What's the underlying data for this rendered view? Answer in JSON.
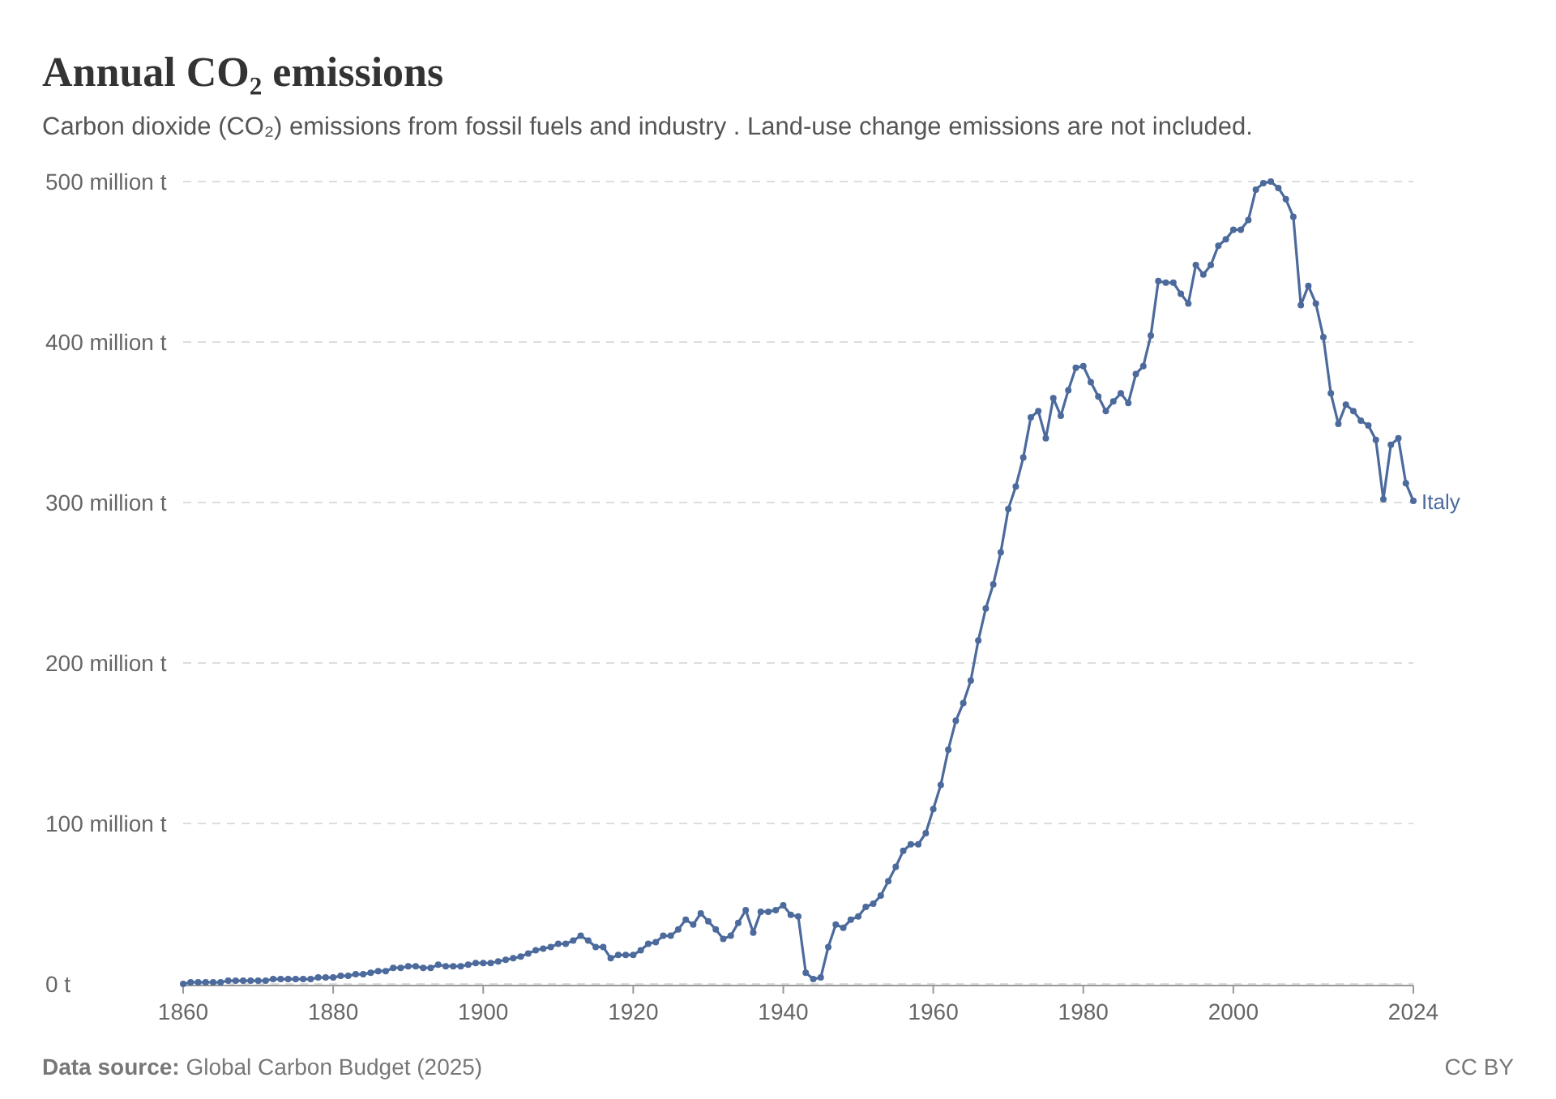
{
  "chart_data": {
    "type": "line",
    "title": "Annual CO₂ emissions",
    "subtitle": "Carbon dioxide (CO₂) emissions from fossil fuels and industry . Land-use change emissions are not included.",
    "annotations": [
      "Data source: Global Carbon Budget (2025)",
      "CC BY"
    ],
    "x": [
      1860,
      1861,
      1862,
      1863,
      1864,
      1865,
      1866,
      1867,
      1868,
      1869,
      1870,
      1871,
      1872,
      1873,
      1874,
      1875,
      1876,
      1877,
      1878,
      1879,
      1880,
      1881,
      1882,
      1883,
      1884,
      1885,
      1886,
      1887,
      1888,
      1889,
      1890,
      1891,
      1892,
      1893,
      1894,
      1895,
      1896,
      1897,
      1898,
      1899,
      1900,
      1901,
      1902,
      1903,
      1904,
      1905,
      1906,
      1907,
      1908,
      1909,
      1910,
      1911,
      1912,
      1913,
      1914,
      1915,
      1916,
      1917,
      1918,
      1919,
      1920,
      1921,
      1922,
      1923,
      1924,
      1925,
      1926,
      1927,
      1928,
      1929,
      1930,
      1931,
      1932,
      1933,
      1934,
      1935,
      1936,
      1937,
      1938,
      1939,
      1940,
      1941,
      1942,
      1943,
      1944,
      1945,
      1946,
      1947,
      1948,
      1949,
      1950,
      1951,
      1952,
      1953,
      1954,
      1955,
      1956,
      1957,
      1958,
      1959,
      1960,
      1961,
      1962,
      1963,
      1964,
      1965,
      1966,
      1967,
      1968,
      1969,
      1970,
      1971,
      1972,
      1973,
      1974,
      1975,
      1976,
      1977,
      1978,
      1979,
      1980,
      1981,
      1982,
      1983,
      1984,
      1985,
      1986,
      1987,
      1988,
      1989,
      1990,
      1991,
      1992,
      1993,
      1994,
      1995,
      1996,
      1997,
      1998,
      1999,
      2000,
      2001,
      2002,
      2003,
      2004,
      2005,
      2006,
      2007,
      2008,
      2009,
      2010,
      2011,
      2012,
      2013,
      2014,
      2015,
      2016,
      2017,
      2018,
      2019,
      2020,
      2021,
      2022,
      2023,
      2024
    ],
    "series": [
      {
        "name": "Italy",
        "color": "#4c6a9c",
        "values": [
          0,
          1,
          1,
          1,
          1,
          1,
          2,
          2,
          2,
          2,
          2,
          2,
          3,
          3,
          3,
          3,
          3,
          3,
          4,
          4,
          4,
          5,
          5,
          6,
          6,
          7,
          8,
          8,
          10,
          10,
          11,
          11,
          10,
          10,
          12,
          11,
          11,
          11,
          12,
          13,
          13,
          13,
          14,
          15,
          16,
          17,
          19,
          21,
          22,
          23,
          25,
          25,
          27,
          30,
          27,
          23,
          23,
          16,
          18,
          18,
          18,
          21,
          25,
          26,
          30,
          30,
          34,
          40,
          37,
          44,
          39,
          34,
          28,
          30,
          38,
          46,
          32,
          45,
          45,
          46,
          49,
          43,
          42,
          7,
          3,
          4,
          23,
          37,
          35,
          40,
          42,
          48,
          50,
          55,
          64,
          73,
          83,
          87,
          87,
          94,
          109,
          124,
          146,
          164,
          175,
          189,
          214,
          234,
          249,
          269,
          296,
          310,
          328,
          353,
          357,
          340,
          365,
          354,
          370,
          384,
          385,
          375,
          366,
          357,
          363,
          368,
          362,
          380,
          385,
          404,
          438,
          437,
          437,
          430,
          424,
          448,
          442,
          448,
          460,
          464,
          470,
          470,
          476,
          495,
          499,
          500,
          496,
          489,
          478,
          423,
          435,
          424,
          403,
          368,
          349,
          361,
          357,
          351,
          348,
          339,
          302,
          336,
          340,
          312,
          301
        ]
      }
    ],
    "xlim": [
      1860,
      2024
    ],
    "xticks": [
      1860,
      1880,
      1900,
      1920,
      1940,
      1960,
      1980,
      2000,
      2024
    ],
    "ylim": [
      0,
      500
    ],
    "yticks": [
      {
        "value": 0,
        "label": "0 t"
      },
      {
        "value": 100,
        "label": "100 million t"
      },
      {
        "value": 200,
        "label": "200 million t"
      },
      {
        "value": 300,
        "label": "300 million t"
      },
      {
        "value": 400,
        "label": "400 million t"
      },
      {
        "value": 500,
        "label": "500 million t"
      }
    ],
    "grid": "y",
    "marker": "circle",
    "line_style": "solid"
  }
}
